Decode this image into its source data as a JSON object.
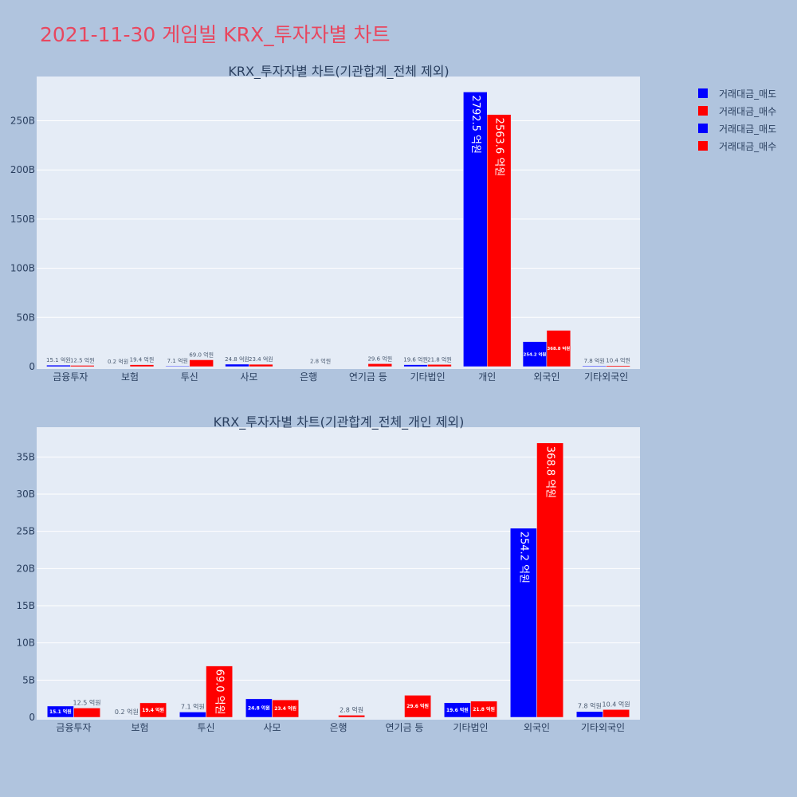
{
  "page_title": "2021-11-30 게임빌 KRX_투자자별 차트",
  "legend": [
    {
      "label": "거래대금_매도",
      "color": "#0000ff"
    },
    {
      "label": "거래대금_매수",
      "color": "#ff0000"
    },
    {
      "label": "거래대금_매도",
      "color": "#0000ff"
    },
    {
      "label": "거래대금_매수",
      "color": "#ff0000"
    }
  ],
  "colors": {
    "sell": "#0000ff",
    "buy": "#ff0000",
    "plot_bg": "#e5ecf6",
    "page_bg": "#b0c4de"
  },
  "chart_data": [
    {
      "type": "bar",
      "title": "KRX_투자자별 차트(기관합계_전체 제외)",
      "categories": [
        "금융투자",
        "보험",
        "투신",
        "사모",
        "은행",
        "연기금 등",
        "기타법인",
        "개인",
        "외국인",
        "기타외국인"
      ],
      "ylim": [
        0,
        295
      ],
      "yticks": [
        0,
        50,
        100,
        150,
        200,
        250
      ],
      "ytick_labels": [
        "0",
        "50B",
        "100B",
        "150B",
        "200B",
        "250B"
      ],
      "series": [
        {
          "name": "거래대금_매도",
          "values": [
            1.51,
            0.02,
            0.71,
            2.48,
            0,
            0,
            1.96,
            279.25,
            25.42,
            0.78
          ],
          "labels": [
            "15.1 억원",
            "0.2 억원",
            "7.1 억원",
            "24.8 억원",
            "",
            "",
            "19.6 억원",
            "2792.5 억원",
            "254.2 억원",
            "7.8 억원"
          ]
        },
        {
          "name": "거래대금_매수",
          "values": [
            1.25,
            1.94,
            6.9,
            2.34,
            0.28,
            2.96,
            2.18,
            256.36,
            36.88,
            1.04
          ],
          "labels": [
            "12.5 억원",
            "19.4 억원",
            "69.0 억원",
            "23.4 억원",
            "2.8 억원",
            "29.6 억원",
            "21.8 억원",
            "2563.6 억원",
            "368.8 억원",
            "10.4 억원"
          ]
        }
      ]
    },
    {
      "type": "bar",
      "title": "KRX_투자자별 차트(기관합계_전체_개인 제외)",
      "categories": [
        "금융투자",
        "보험",
        "투신",
        "사모",
        "은행",
        "연기금 등",
        "기타법인",
        "외국인",
        "기타외국인"
      ],
      "ylim": [
        0,
        39
      ],
      "yticks": [
        0,
        5,
        10,
        15,
        20,
        25,
        30,
        35
      ],
      "ytick_labels": [
        "0",
        "5B",
        "10B",
        "15B",
        "20B",
        "25B",
        "30B",
        "35B"
      ],
      "series": [
        {
          "name": "거래대금_매도",
          "values": [
            1.51,
            0.02,
            0.71,
            2.48,
            0,
            0,
            1.96,
            25.42,
            0.78
          ],
          "labels": [
            "15.1 억원",
            "0.2 억원",
            "7.1 억원",
            "24.8 억원",
            "",
            "",
            "19.6 억원",
            "254.2 억원",
            "7.8 억원"
          ]
        },
        {
          "name": "거래대금_매수",
          "values": [
            1.25,
            1.94,
            6.9,
            2.34,
            0.28,
            2.96,
            2.18,
            36.88,
            1.04
          ],
          "labels": [
            "12.5 억원",
            "19.4 억원",
            "69.0 억원",
            "23.4 억원",
            "2.8 억원",
            "29.6 억원",
            "21.8 억원",
            "368.8 억원",
            "10.4 억원"
          ]
        }
      ]
    }
  ]
}
